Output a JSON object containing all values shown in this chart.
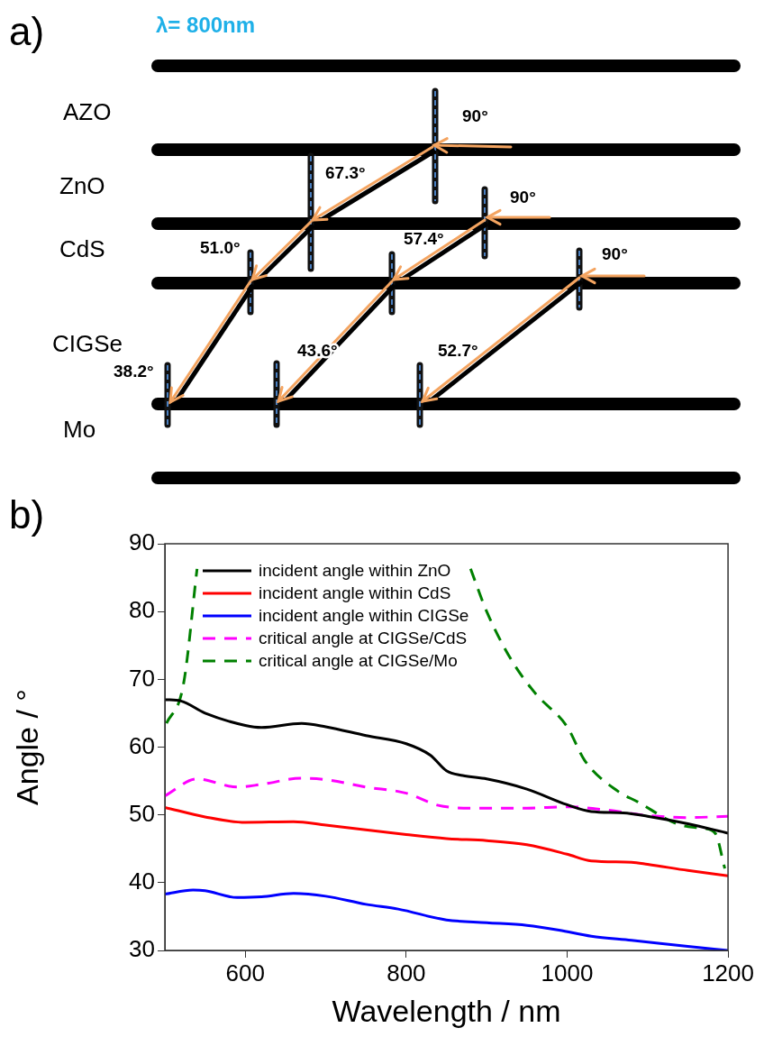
{
  "chart_data": [
    {
      "type": "other",
      "title": "a)",
      "subtitle": "λ= 800nm",
      "annotations": [
        "AZO",
        "ZnO",
        "CdS",
        "CIGSe",
        "Mo",
        "90°",
        "67.3°",
        "90°",
        "51.0°",
        "57.4°",
        "90°",
        "38.2°",
        "43.6°",
        "52.7°"
      ]
    },
    {
      "type": "line",
      "title": "b)",
      "xlabel": "Wavelength / nm",
      "ylabel": "Angle / °",
      "xlim": [
        500,
        1200
      ],
      "xticks": [
        600,
        800,
        1000,
        1200
      ],
      "ylim": [
        30,
        90
      ],
      "yticks": [
        30,
        40,
        50,
        60,
        70,
        80,
        90
      ],
      "grid": false,
      "legend": "top left",
      "marker": "none",
      "series": [
        {
          "name": "incident angle within ZnO",
          "color": "#000000",
          "line_style": "solid",
          "x": [
            500,
            520,
            550,
            600,
            620,
            670,
            700,
            750,
            800,
            830,
            850,
            870,
            900,
            950,
            1000,
            1030,
            1070,
            1100,
            1150,
            1200
          ],
          "values": [
            67,
            66.8,
            65,
            63.2,
            62.9,
            63.5,
            63,
            61.7,
            60.5,
            58.8,
            56.5,
            55.8,
            55.3,
            53.8,
            51.5,
            50.5,
            50.3,
            49.8,
            48.7,
            47.3
          ]
        },
        {
          "name": "incident angle within CdS",
          "color": "#ff0000",
          "line_style": "solid",
          "x": [
            500,
            550,
            600,
            660,
            700,
            800,
            850,
            900,
            950,
            1000,
            1030,
            1080,
            1100,
            1150,
            1200
          ],
          "values": [
            51.1,
            49.7,
            48.9,
            49,
            48.5,
            47.1,
            46.5,
            46.2,
            45.6,
            44.2,
            43.2,
            43,
            42.7,
            41.8,
            41
          ]
        },
        {
          "name": "incident angle within CIGSe",
          "color": "#0000ff",
          "line_style": "solid",
          "x": [
            500,
            535,
            550,
            590,
            620,
            660,
            700,
            750,
            790,
            850,
            900,
            950,
            990,
            1030,
            1080,
            1150,
            1200
          ],
          "values": [
            38.3,
            38.9,
            38.8,
            37.8,
            37.9,
            38.4,
            38,
            36.8,
            36.1,
            34.5,
            34.1,
            33.7,
            33,
            32.1,
            31.5,
            30.6,
            30
          ]
        },
        {
          "name": "critical angle at CIGSe/CdS",
          "color": "#ff00ff",
          "line_style": "dashed",
          "x": [
            500,
            540,
            590,
            620,
            670,
            700,
            750,
            800,
            840,
            880,
            950,
            1000,
            1050,
            1100,
            1150,
            1200
          ],
          "values": [
            52.8,
            55.3,
            54.1,
            54.5,
            55.4,
            55.2,
            54.1,
            53.2,
            51.4,
            51,
            51,
            51.2,
            50.7,
            49.9,
            49.6,
            49.8
          ]
        },
        {
          "name": "critical angle at CIGSe/Mo",
          "color": "#008000",
          "line_style": "dashed",
          "x": [
            502,
            523,
            540,
            700,
            880,
            900,
            930,
            960,
            1000,
            1022,
            1063,
            1088,
            1138,
            1170,
            1184,
            1196
          ],
          "values": [
            63.5,
            69.2,
            86.3,
            null,
            86.3,
            80,
            73,
            68,
            63,
            58,
            53.5,
            51.9,
            48.6,
            48,
            47.3,
            42.1
          ]
        }
      ]
    }
  ]
}
